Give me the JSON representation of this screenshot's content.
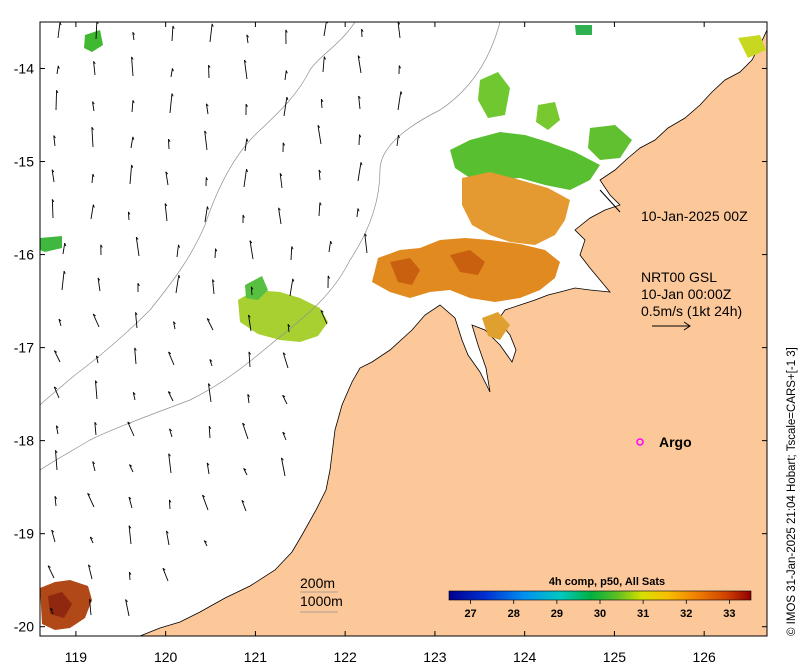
{
  "map": {
    "x_ticks": [
      "119",
      "120",
      "121",
      "122",
      "123",
      "124",
      "125",
      "126"
    ],
    "y_ticks": [
      "-14",
      "-15",
      "-16",
      "-17",
      "-18",
      "-19",
      "-20"
    ],
    "lon_range": [
      118.6,
      126.7
    ],
    "lat_range": [
      -20.1,
      -13.5
    ],
    "grid": false,
    "land_color": "#fcc89a",
    "timestamp_label": "10-Jan-2025 00Z",
    "info": {
      "line1": "NRT00 GSL",
      "line2": "10-Jan 00:00Z",
      "line3": "0.5m/s (1kt 24h)"
    },
    "argo": {
      "label": "Argo",
      "color": "#ff00ff"
    },
    "contours": {
      "c200": "200m",
      "c1000": "1000m"
    }
  },
  "colorbar": {
    "title": "4h comp, p50, All Sats",
    "ticks": [
      "27",
      "28",
      "29",
      "30",
      "31",
      "32",
      "33"
    ],
    "range": [
      26.5,
      33.5
    ],
    "colors": [
      "#000090",
      "#0030d0",
      "#0090f0",
      "#00c8c0",
      "#00b040",
      "#60c020",
      "#d8e000",
      "#f8c000",
      "#f08000",
      "#d04000",
      "#900000"
    ]
  },
  "credit": "© IMOS 31-Jan-2025 21:04 Hobart; Tscale=CARS+[-1 3]"
}
